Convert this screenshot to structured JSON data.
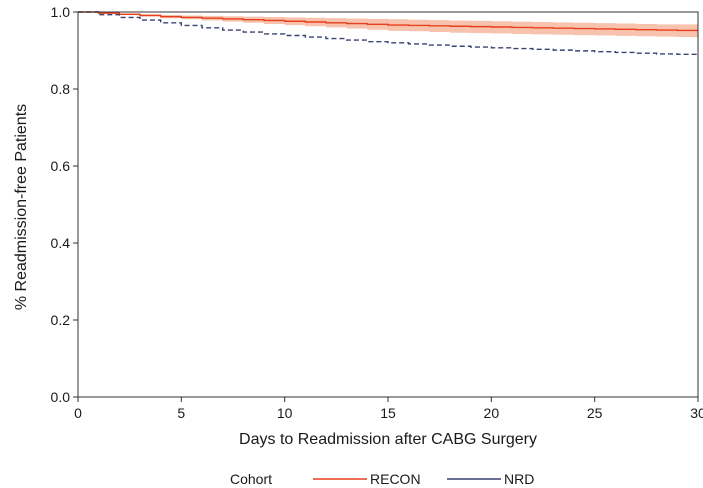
{
  "chart_data": {
    "type": "line",
    "xlabel": "Days to Readmission after CABG Surgery",
    "ylabel": "% Readmission-free Patients",
    "xlim": [
      0,
      30
    ],
    "ylim": [
      0,
      1.0
    ],
    "x_ticks": [
      "0",
      "5",
      "10",
      "15",
      "20",
      "25",
      "30"
    ],
    "y_ticks": [
      "0.0",
      "0.2",
      "0.4",
      "0.6",
      "0.8",
      "1.0"
    ],
    "grid": false,
    "legend": {
      "position": "bottom",
      "title": "Cohort",
      "entries": [
        "RECON",
        "NRD"
      ]
    },
    "series": [
      {
        "name": "RECON",
        "color": "#e8401c",
        "band_color": "#f5b49a",
        "line_style": "solid",
        "x": [
          0,
          1,
          2,
          3,
          4,
          5,
          6,
          7,
          8,
          9,
          10,
          11,
          12,
          13,
          14,
          15,
          16,
          17,
          18,
          19,
          20,
          21,
          22,
          23,
          24,
          25,
          26,
          27,
          28,
          29,
          30
        ],
        "y": [
          1.0,
          0.997,
          0.994,
          0.991,
          0.988,
          0.986,
          0.984,
          0.982,
          0.98,
          0.978,
          0.976,
          0.974,
          0.972,
          0.97,
          0.968,
          0.966,
          0.965,
          0.964,
          0.963,
          0.962,
          0.961,
          0.96,
          0.959,
          0.958,
          0.957,
          0.956,
          0.955,
          0.954,
          0.953,
          0.952,
          0.952
        ],
        "lower": [
          1.0,
          0.996,
          0.992,
          0.988,
          0.984,
          0.981,
          0.978,
          0.975,
          0.972,
          0.969,
          0.966,
          0.963,
          0.96,
          0.957,
          0.954,
          0.951,
          0.95,
          0.948,
          0.946,
          0.945,
          0.944,
          0.943,
          0.942,
          0.941,
          0.94,
          0.939,
          0.938,
          0.937,
          0.936,
          0.935,
          0.934
        ],
        "upper": [
          1.0,
          0.998,
          0.996,
          0.994,
          0.992,
          0.991,
          0.99,
          0.989,
          0.988,
          0.987,
          0.986,
          0.985,
          0.984,
          0.983,
          0.982,
          0.981,
          0.98,
          0.979,
          0.978,
          0.977,
          0.976,
          0.975,
          0.974,
          0.973,
          0.972,
          0.971,
          0.97,
          0.969,
          0.968,
          0.968,
          0.968
        ]
      },
      {
        "name": "NRD",
        "color": "#3a4270",
        "line_style": "dashed",
        "x": [
          0,
          1,
          2,
          3,
          4,
          5,
          6,
          7,
          8,
          9,
          10,
          11,
          12,
          13,
          14,
          15,
          16,
          17,
          18,
          19,
          20,
          21,
          22,
          23,
          24,
          25,
          26,
          27,
          28,
          29,
          30
        ],
        "y": [
          1.0,
          0.993,
          0.986,
          0.979,
          0.972,
          0.965,
          0.959,
          0.953,
          0.948,
          0.943,
          0.939,
          0.935,
          0.931,
          0.927,
          0.923,
          0.92,
          0.917,
          0.914,
          0.911,
          0.909,
          0.907,
          0.905,
          0.903,
          0.901,
          0.899,
          0.897,
          0.895,
          0.893,
          0.891,
          0.89,
          0.889
        ]
      }
    ]
  }
}
